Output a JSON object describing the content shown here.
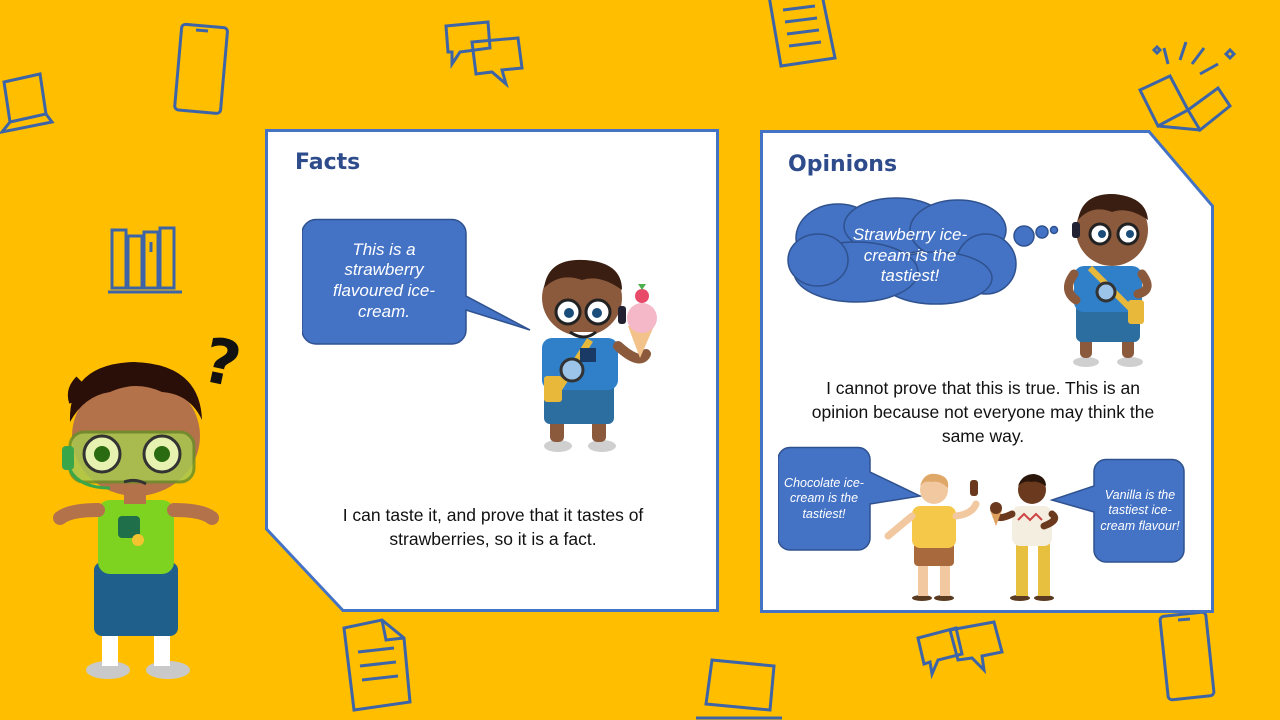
{
  "facts": {
    "title": "Facts",
    "speech": "This is a strawberry flavoured ice-cream.",
    "body": "I can taste it, and prove that it tastes of strawberries, so it is a fact."
  },
  "opinions": {
    "title": "Opinions",
    "thought": "Strawberry ice-cream is the tastiest!",
    "body": "I cannot prove that this is true. This is an opinion because not everyone may think the same way.",
    "bubble_left": "Chocolate ice-cream is the tastiest!",
    "bubble_right": "Vanilla is the tastiest ice-cream flavour!"
  },
  "decor": {
    "question_mark": "?"
  },
  "colors": {
    "background": "#FFBF00",
    "card_border": "#4472C4",
    "bubble_fill": "#4472C4",
    "title_text": "#2E4C8C",
    "icon_stroke": "#3E64A8"
  }
}
